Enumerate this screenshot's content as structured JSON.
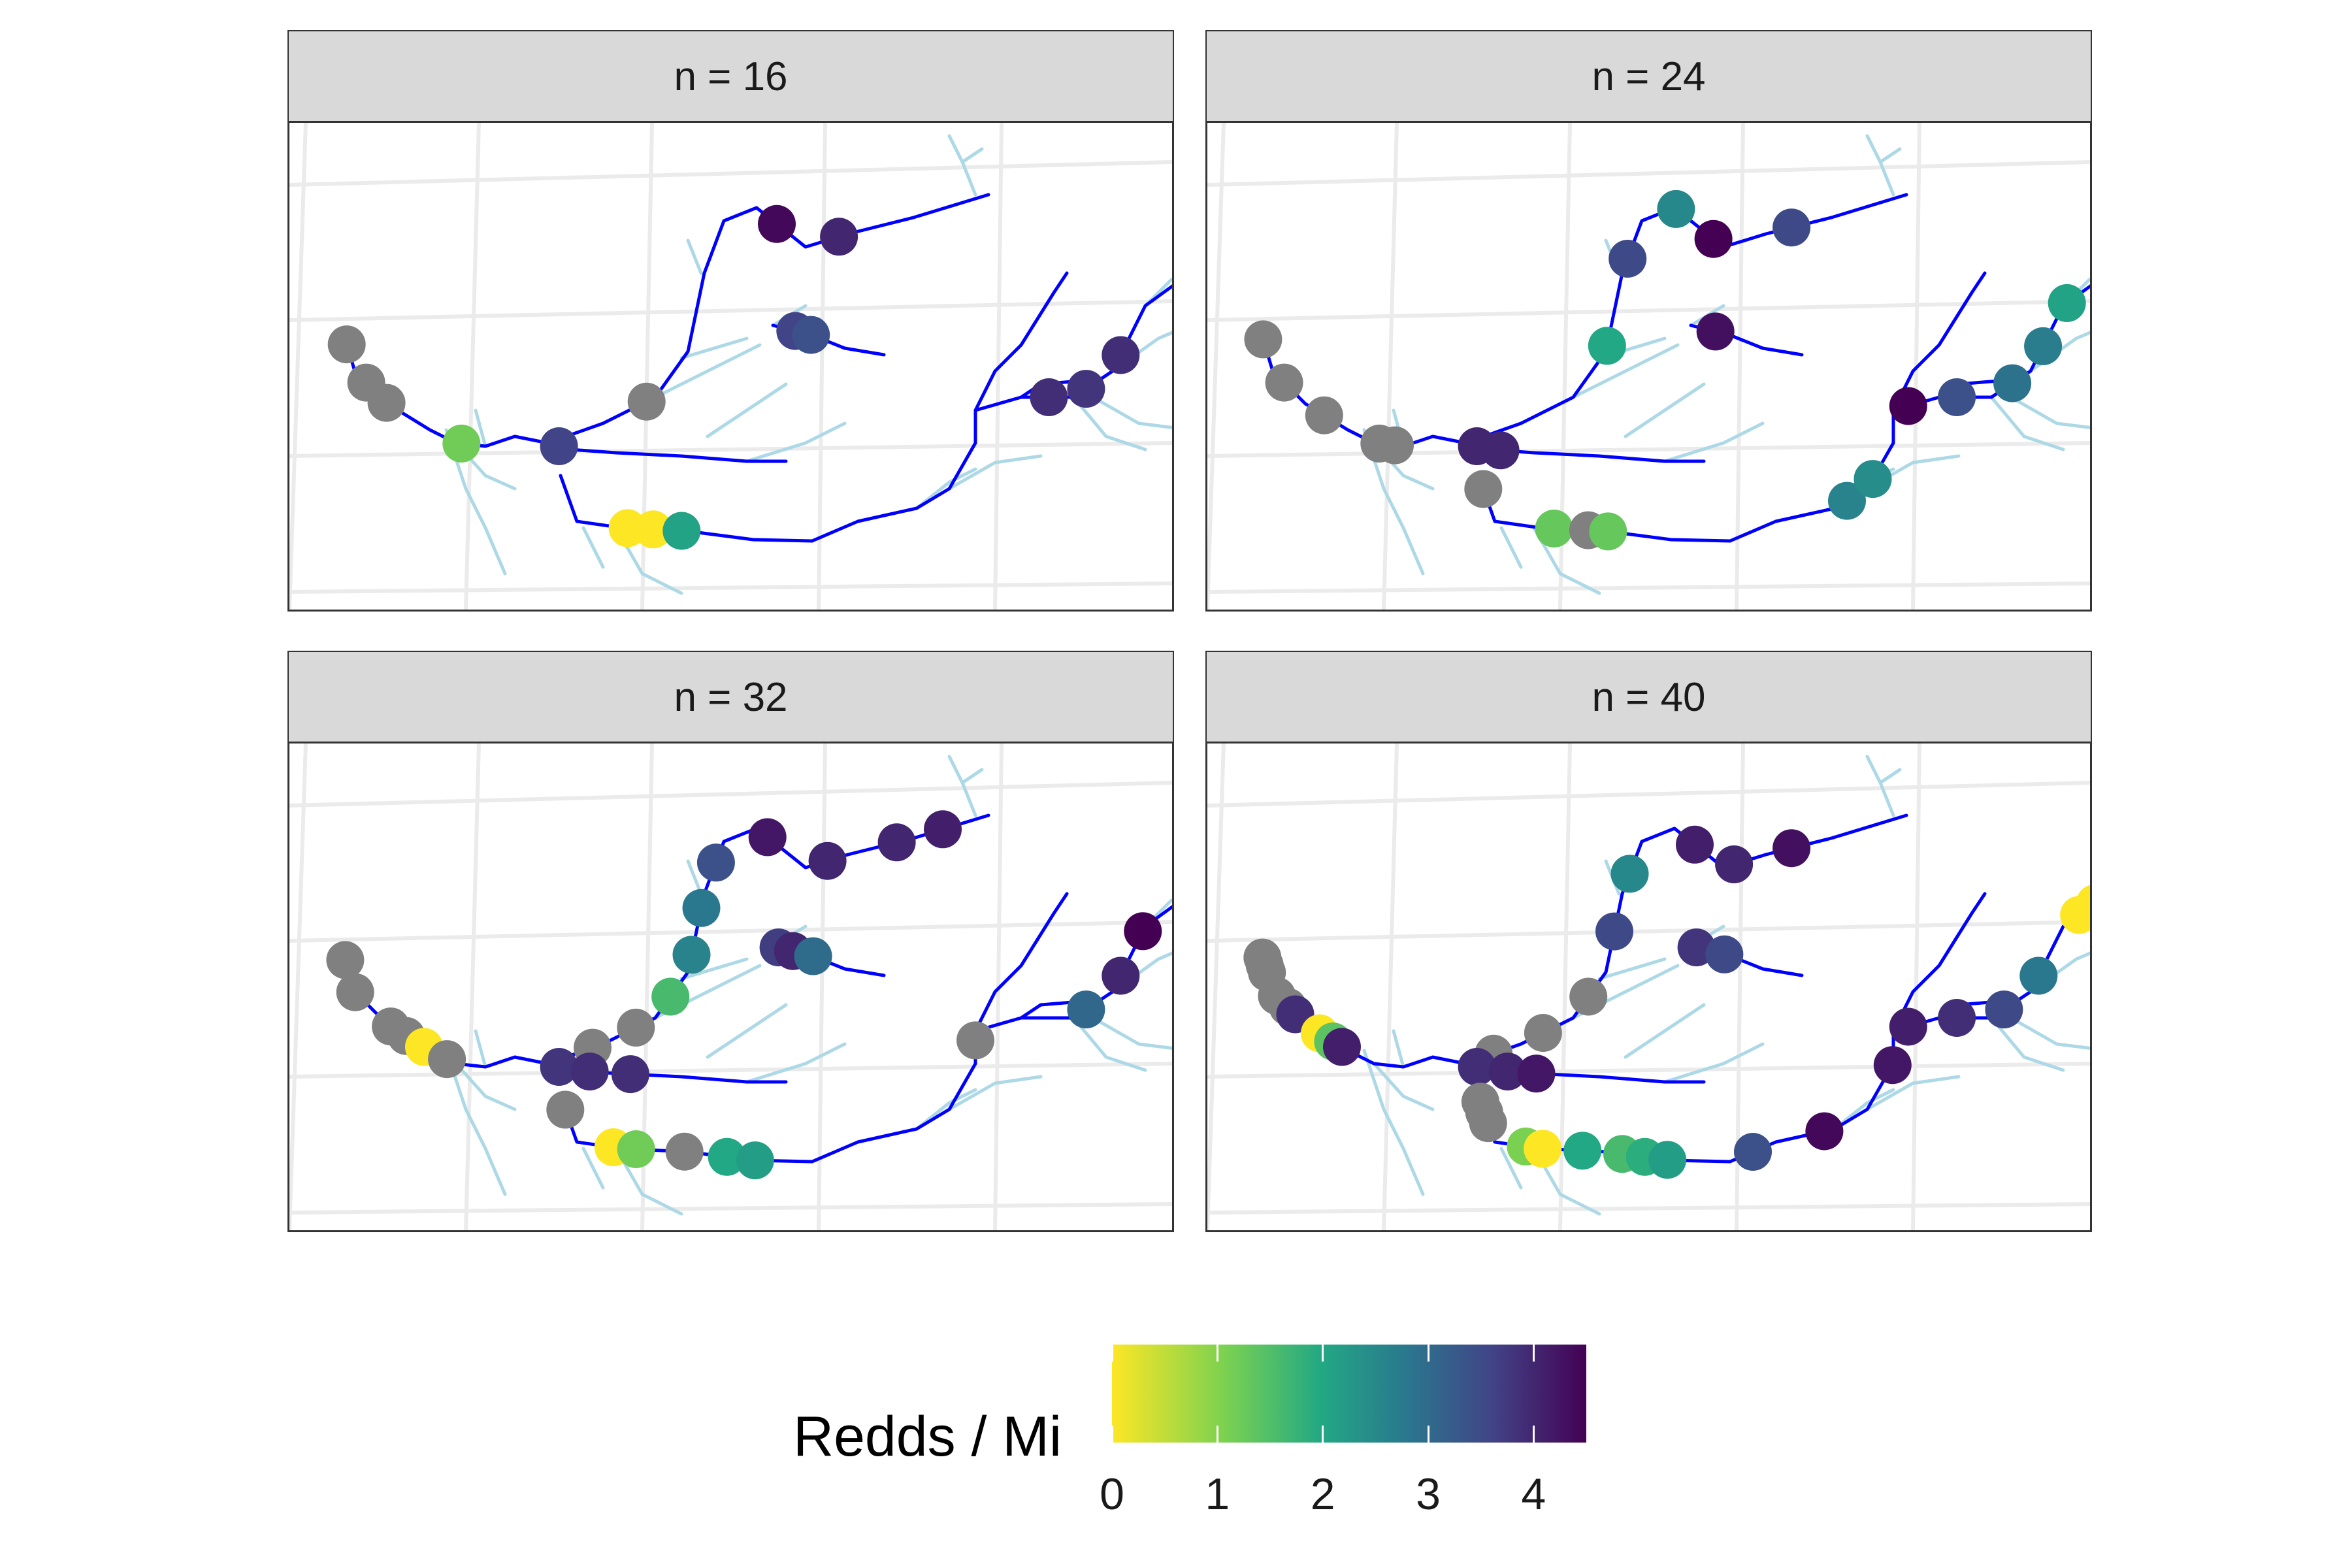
{
  "panels": [
    {
      "title": "n = 16",
      "sites": [
        {
          "row": "main-west",
          "pos": 0.05,
          "value": null
        },
        {
          "row": "main-west",
          "pos": 0.22,
          "value": null
        },
        {
          "row": "main-west",
          "pos": 0.33,
          "value": null
        },
        {
          "row": "main-west",
          "pos": 0.66,
          "value": 1.0
        },
        {
          "row": "north-fork",
          "pos": 0.18,
          "value": null
        },
        {
          "row": "north-fork",
          "pos": 0.62,
          "value": 4.4
        },
        {
          "row": "north-fork",
          "pos": 0.74,
          "value": 4.0
        },
        {
          "row": "middle-creek",
          "pos": 0.05,
          "value": 3.6
        },
        {
          "row": "upper-east",
          "pos": 0.2,
          "value": 3.6
        },
        {
          "row": "upper-east",
          "pos": 0.34,
          "value": 3.4
        },
        {
          "row": "south-branch",
          "pos": 0.35,
          "value": 0.0
        },
        {
          "row": "south-branch",
          "pos": 0.44,
          "value": 0.0
        },
        {
          "row": "south-branch",
          "pos": 0.54,
          "value": 1.9
        },
        {
          "row": "east-fork",
          "pos": 0.62,
          "value": 3.9
        },
        {
          "row": "east-fork",
          "pos": 0.7,
          "value": 3.8
        },
        {
          "row": "east-fork",
          "pos": 0.8,
          "value": 3.9
        }
      ]
    },
    {
      "title": "n = 24",
      "sites": [
        {
          "row": "main-west",
          "pos": 0.03,
          "value": null
        },
        {
          "row": "main-west",
          "pos": 0.22,
          "value": null
        },
        {
          "row": "main-west",
          "pos": 0.42,
          "value": null
        },
        {
          "row": "main-west",
          "pos": 0.66,
          "value": null
        },
        {
          "row": "main-west",
          "pos": 0.72,
          "value": null
        },
        {
          "row": "north-fork",
          "pos": 0.3,
          "value": 1.8
        },
        {
          "row": "north-fork",
          "pos": 0.45,
          "value": 3.5
        },
        {
          "row": "north-fork",
          "pos": 0.58,
          "value": 2.4
        },
        {
          "row": "north-fork",
          "pos": 0.66,
          "value": 4.6
        },
        {
          "row": "north-fork",
          "pos": 0.8,
          "value": 3.5
        },
        {
          "row": "middle-creek",
          "pos": 0.05,
          "value": 4.0
        },
        {
          "row": "middle-creek",
          "pos": 0.15,
          "value": 4.0
        },
        {
          "row": "upper-east",
          "pos": 0.22,
          "value": 4.3
        },
        {
          "row": "south-branch",
          "pos": 0.05,
          "value": null
        },
        {
          "row": "south-branch",
          "pos": 0.38,
          "value": 1.1
        },
        {
          "row": "south-branch",
          "pos": 0.5,
          "value": null
        },
        {
          "row": "south-branch",
          "pos": 0.57,
          "value": 1.1
        },
        {
          "row": "east-fork",
          "pos": 0.25,
          "value": 2.5
        },
        {
          "row": "east-fork",
          "pos": 0.32,
          "value": 2.3
        },
        {
          "row": "east-fork",
          "pos": 0.5,
          "value": 4.5
        },
        {
          "row": "east-fork",
          "pos": 0.6,
          "value": 3.4
        },
        {
          "row": "east-fork",
          "pos": 0.72,
          "value": 2.8
        },
        {
          "row": "east-fork",
          "pos": 0.82,
          "value": 2.6
        },
        {
          "row": "east-fork",
          "pos": 0.92,
          "value": 1.9
        }
      ]
    },
    {
      "title": "n = 32",
      "sites": [
        {
          "row": "main-west",
          "pos": 0.03,
          "value": null
        },
        {
          "row": "main-west",
          "pos": 0.16,
          "value": null
        },
        {
          "row": "main-west",
          "pos": 0.35,
          "value": null
        },
        {
          "row": "main-west",
          "pos": 0.42,
          "value": null
        },
        {
          "row": "main-west",
          "pos": 0.5,
          "value": 0.0
        },
        {
          "row": "main-west",
          "pos": 0.6,
          "value": null
        },
        {
          "row": "north-fork",
          "pos": 0.08,
          "value": null
        },
        {
          "row": "north-fork",
          "pos": 0.16,
          "value": null
        },
        {
          "row": "north-fork",
          "pos": 0.24,
          "value": 1.4
        },
        {
          "row": "north-fork",
          "pos": 0.32,
          "value": 2.5
        },
        {
          "row": "north-fork",
          "pos": 0.4,
          "value": 2.7
        },
        {
          "row": "north-fork",
          "pos": 0.48,
          "value": 3.4
        },
        {
          "row": "north-fork",
          "pos": 0.6,
          "value": 4.2
        },
        {
          "row": "north-fork",
          "pos": 0.72,
          "value": 4.0
        },
        {
          "row": "north-fork",
          "pos": 0.84,
          "value": 4.0
        },
        {
          "row": "north-fork",
          "pos": 0.92,
          "value": 4.1
        },
        {
          "row": "middle-creek",
          "pos": 0.05,
          "value": 3.8
        },
        {
          "row": "middle-creek",
          "pos": 0.18,
          "value": 3.9
        },
        {
          "row": "middle-creek",
          "pos": 0.35,
          "value": 3.9
        },
        {
          "row": "upper-east",
          "pos": 0.05,
          "value": 3.7
        },
        {
          "row": "upper-east",
          "pos": 0.18,
          "value": 4.0
        },
        {
          "row": "upper-east",
          "pos": 0.36,
          "value": 2.9
        },
        {
          "row": "south-branch",
          "pos": 0.05,
          "value": null
        },
        {
          "row": "south-branch",
          "pos": 0.3,
          "value": 0.0
        },
        {
          "row": "south-branch",
          "pos": 0.38,
          "value": 1.0
        },
        {
          "row": "south-branch",
          "pos": 0.55,
          "value": null
        },
        {
          "row": "south-branch",
          "pos": 0.7,
          "value": 1.8
        },
        {
          "row": "south-branch",
          "pos": 0.8,
          "value": 2.0
        },
        {
          "row": "east-fork",
          "pos": 0.45,
          "value": null
        },
        {
          "row": "east-fork",
          "pos": 0.7,
          "value": 3.0
        },
        {
          "row": "east-fork",
          "pos": 0.8,
          "value": 4.0
        },
        {
          "row": "east-fork",
          "pos": 0.9,
          "value": 4.5
        }
      ]
    },
    {
      "title": "n = 40",
      "sites": [
        {
          "row": "main-west",
          "pos": 0.02,
          "value": null
        },
        {
          "row": "main-west",
          "pos": 0.05,
          "value": null
        },
        {
          "row": "main-west",
          "pos": 0.08,
          "value": null
        },
        {
          "row": "main-west",
          "pos": 0.18,
          "value": null
        },
        {
          "row": "main-west",
          "pos": 0.24,
          "value": null
        },
        {
          "row": "main-west",
          "pos": 0.28,
          "value": 3.9
        },
        {
          "row": "main-west",
          "pos": 0.4,
          "value": 0.0
        },
        {
          "row": "main-west",
          "pos": 0.46,
          "value": 1.2
        },
        {
          "row": "main-west",
          "pos": 0.5,
          "value": 4.1
        },
        {
          "row": "north-fork",
          "pos": 0.05,
          "value": null
        },
        {
          "row": "north-fork",
          "pos": 0.14,
          "value": null
        },
        {
          "row": "north-fork",
          "pos": 0.24,
          "value": null
        },
        {
          "row": "north-fork",
          "pos": 0.36,
          "value": 3.5
        },
        {
          "row": "north-fork",
          "pos": 0.46,
          "value": 2.4
        },
        {
          "row": "north-fork",
          "pos": 0.62,
          "value": 4.1
        },
        {
          "row": "north-fork",
          "pos": 0.7,
          "value": 4.0
        },
        {
          "row": "north-fork",
          "pos": 0.8,
          "value": 4.3
        },
        {
          "row": "middle-creek",
          "pos": 0.05,
          "value": 3.9
        },
        {
          "row": "middle-creek",
          "pos": 0.18,
          "value": 4.0
        },
        {
          "row": "middle-creek",
          "pos": 0.3,
          "value": 4.2
        },
        {
          "row": "upper-east",
          "pos": 0.05,
          "value": 3.8
        },
        {
          "row": "upper-east",
          "pos": 0.3,
          "value": 3.5
        },
        {
          "row": "south-branch",
          "pos": 0.02,
          "value": null
        },
        {
          "row": "south-branch",
          "pos": 0.06,
          "value": null
        },
        {
          "row": "south-branch",
          "pos": 0.1,
          "value": null
        },
        {
          "row": "south-branch",
          "pos": 0.28,
          "value": 0.9
        },
        {
          "row": "south-branch",
          "pos": 0.34,
          "value": 0.0
        },
        {
          "row": "south-branch",
          "pos": 0.48,
          "value": 1.8
        },
        {
          "row": "south-branch",
          "pos": 0.62,
          "value": 1.4
        },
        {
          "row": "south-branch",
          "pos": 0.7,
          "value": 1.7
        },
        {
          "row": "south-branch",
          "pos": 0.78,
          "value": 2.0
        },
        {
          "row": "east-fork",
          "pos": 0.05,
          "value": 3.4
        },
        {
          "row": "east-fork",
          "pos": 0.2,
          "value": 4.4
        },
        {
          "row": "east-fork",
          "pos": 0.4,
          "value": 4.2
        },
        {
          "row": "east-fork",
          "pos": 0.5,
          "value": 4.1
        },
        {
          "row": "east-fork",
          "pos": 0.6,
          "value": 3.9
        },
        {
          "row": "east-fork",
          "pos": 0.7,
          "value": 3.5
        },
        {
          "row": "east-fork",
          "pos": 0.8,
          "value": 2.7
        },
        {
          "row": "east-fork",
          "pos": 0.95,
          "value": 0.0
        },
        {
          "row": "east-fork",
          "pos": 0.99,
          "value": 0.0
        }
      ]
    }
  ],
  "legend": {
    "title": "Redds / Mi",
    "min": 0,
    "max": 4.5,
    "ticks": [
      {
        "value": 0,
        "label": "0"
      },
      {
        "value": 1,
        "label": "1"
      },
      {
        "value": 2,
        "label": "2"
      },
      {
        "value": 3,
        "label": "3"
      },
      {
        "value": 4,
        "label": "4"
      }
    ]
  },
  "colors": {
    "no_data": "#808080",
    "main_stream": "#0000ff",
    "tributary": "#add8e6",
    "graticule": "#ebebeb",
    "viridis": [
      "#fde725",
      "#7ad151",
      "#22a884",
      "#2a788e",
      "#414487",
      "#440154"
    ]
  }
}
